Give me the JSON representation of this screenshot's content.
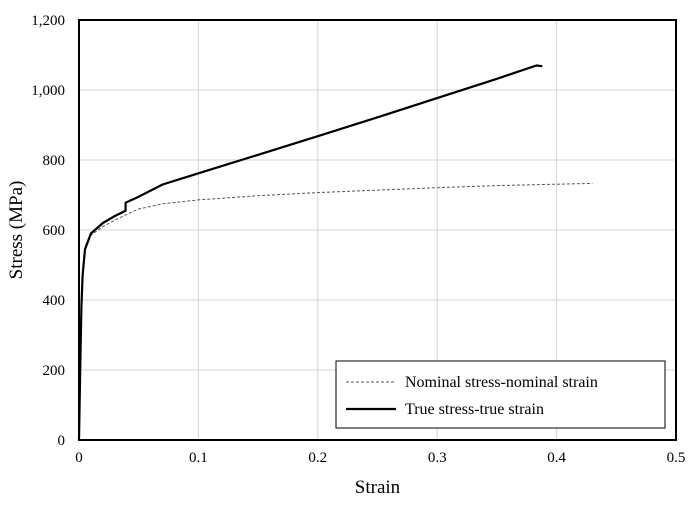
{
  "chart_data": {
    "type": "line",
    "title": "",
    "xlabel": "Strain",
    "ylabel": "Stress (MPa)",
    "xlim": [
      0,
      0.5
    ],
    "ylim": [
      0,
      1200
    ],
    "xticks": [
      0,
      0.1,
      0.2,
      0.3,
      0.4,
      0.5
    ],
    "xtick_labels": [
      "0",
      "0.1",
      "0.2",
      "0.3",
      "0.4",
      "0.5"
    ],
    "yticks": [
      0,
      200,
      400,
      600,
      800,
      1000,
      1200
    ],
    "ytick_labels": [
      "0",
      "200",
      "400",
      "600",
      "800",
      "1,000",
      "1,200"
    ],
    "grid": true,
    "legend_position": "bottom-right",
    "series": [
      {
        "name": "Nominal stress-nominal strain",
        "style": "dashed",
        "color": "#555555",
        "x": [
          0,
          0.001,
          0.002,
          0.003,
          0.005,
          0.01,
          0.02,
          0.03,
          0.04,
          0.05,
          0.07,
          0.1,
          0.15,
          0.2,
          0.25,
          0.3,
          0.35,
          0.4,
          0.43
        ],
        "y": [
          0,
          200,
          380,
          470,
          540,
          585,
          610,
          628,
          645,
          660,
          675,
          686,
          698,
          707,
          714,
          721,
          727,
          731,
          733
        ]
      },
      {
        "name": "True stress-true strain",
        "style": "solid",
        "color": "#000000",
        "x": [
          0,
          0.001,
          0.002,
          0.003,
          0.005,
          0.01,
          0.02,
          0.03,
          0.039,
          0.039,
          0.05,
          0.07,
          0.1,
          0.15,
          0.2,
          0.25,
          0.3,
          0.35,
          0.383,
          0.388
        ],
        "y": [
          0,
          200,
          380,
          470,
          545,
          590,
          620,
          640,
          655,
          678,
          695,
          730,
          762,
          815,
          868,
          922,
          977,
          1032,
          1070,
          1068
        ]
      }
    ]
  }
}
